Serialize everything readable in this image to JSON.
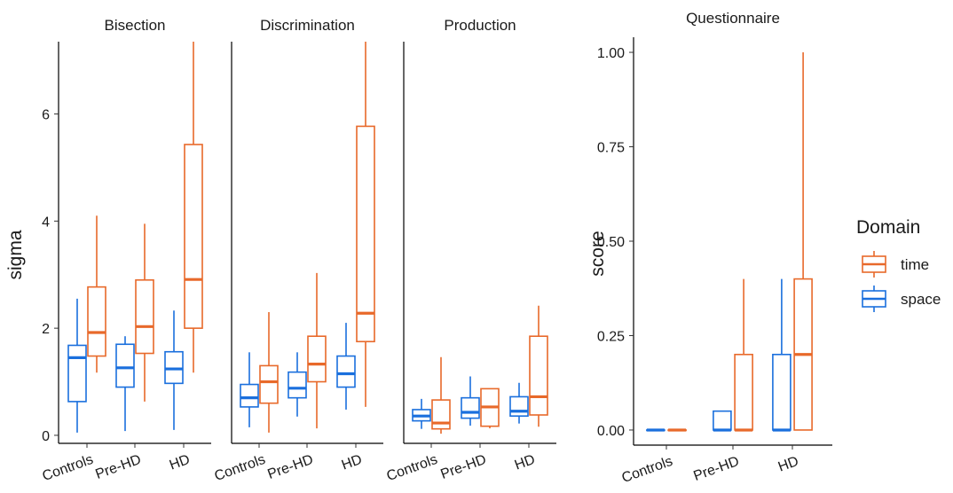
{
  "colors": {
    "time": "#E8692A",
    "space": "#1A6FDD"
  },
  "legend": {
    "title": "Domain",
    "items": [
      {
        "key": "time",
        "label": "time"
      },
      {
        "key": "space",
        "label": "space"
      }
    ]
  },
  "chart_data": [
    {
      "type": "boxplot",
      "title": "Bisection",
      "ylabel": "sigma",
      "ylim": [
        -0.15,
        7.35
      ],
      "yticks": [
        0,
        2,
        4,
        6
      ],
      "categories": [
        "Controls",
        "Pre-HD",
        "HD"
      ],
      "series": [
        {
          "name": "space",
          "boxes": [
            {
              "min": 0.05,
              "q1": 0.63,
              "median": 1.45,
              "q3": 1.68,
              "max": 2.55
            },
            {
              "min": 0.08,
              "q1": 0.9,
              "median": 1.26,
              "q3": 1.7,
              "max": 1.85
            },
            {
              "min": 0.1,
              "q1": 0.97,
              "median": 1.24,
              "q3": 1.56,
              "max": 2.33
            }
          ]
        },
        {
          "name": "time",
          "boxes": [
            {
              "min": 1.17,
              "q1": 1.48,
              "median": 1.92,
              "q3": 2.77,
              "max": 4.1
            },
            {
              "min": 0.63,
              "q1": 1.53,
              "median": 2.03,
              "q3": 2.9,
              "max": 3.95
            },
            {
              "min": 1.17,
              "q1": 2.0,
              "median": 2.91,
              "q3": 5.43,
              "max": 7.35
            }
          ]
        }
      ]
    },
    {
      "type": "boxplot",
      "title": "Discrimination",
      "ylim": [
        -0.15,
        7.35
      ],
      "categories": [
        "Controls",
        "Pre-HD",
        "HD"
      ],
      "series": [
        {
          "name": "space",
          "boxes": [
            {
              "min": 0.15,
              "q1": 0.53,
              "median": 0.7,
              "q3": 0.95,
              "max": 1.55
            },
            {
              "min": 0.35,
              "q1": 0.7,
              "median": 0.88,
              "q3": 1.18,
              "max": 1.55
            },
            {
              "min": 0.48,
              "q1": 0.9,
              "median": 1.15,
              "q3": 1.48,
              "max": 2.1
            }
          ]
        },
        {
          "name": "time",
          "boxes": [
            {
              "min": 0.05,
              "q1": 0.6,
              "median": 1.0,
              "q3": 1.3,
              "max": 2.3
            },
            {
              "min": 0.13,
              "q1": 1.0,
              "median": 1.33,
              "q3": 1.85,
              "max": 3.03
            },
            {
              "min": 0.53,
              "q1": 1.75,
              "median": 2.28,
              "q3": 5.77,
              "max": 7.35
            }
          ]
        }
      ]
    },
    {
      "type": "boxplot",
      "title": "Production",
      "ylim": [
        -0.15,
        7.35
      ],
      "categories": [
        "Controls",
        "Pre-HD",
        "HD"
      ],
      "series": [
        {
          "name": "space",
          "boxes": [
            {
              "min": 0.12,
              "q1": 0.27,
              "median": 0.36,
              "q3": 0.48,
              "max": 0.68
            },
            {
              "min": 0.18,
              "q1": 0.32,
              "median": 0.43,
              "q3": 0.7,
              "max": 1.1
            },
            {
              "min": 0.22,
              "q1": 0.36,
              "median": 0.45,
              "q3": 0.72,
              "max": 0.98
            }
          ]
        },
        {
          "name": "time",
          "boxes": [
            {
              "min": 0.03,
              "q1": 0.12,
              "median": 0.23,
              "q3": 0.66,
              "max": 1.46
            },
            {
              "min": 0.13,
              "q1": 0.17,
              "median": 0.53,
              "q3": 0.87,
              "max": 0.87
            },
            {
              "min": 0.16,
              "q1": 0.38,
              "median": 0.72,
              "q3": 1.85,
              "max": 2.42
            }
          ]
        }
      ]
    },
    {
      "type": "boxplot",
      "title": "Questionnaire",
      "ylabel": "score",
      "ylim": [
        -0.04,
        1.04
      ],
      "yticks": [
        0.0,
        0.25,
        0.5,
        0.75,
        1.0
      ],
      "yticklabels": [
        "0.00",
        "0.25",
        "0.50",
        "0.75",
        "1.00"
      ],
      "categories": [
        "Controls",
        "Pre-HD",
        "HD"
      ],
      "series": [
        {
          "name": "space",
          "boxes": [
            {
              "min": 0.0,
              "q1": 0.0,
              "median": 0.0,
              "q3": 0.0,
              "max": 0.0
            },
            {
              "min": 0.0,
              "q1": 0.0,
              "median": 0.0,
              "q3": 0.05,
              "max": 0.05
            },
            {
              "min": 0.0,
              "q1": 0.0,
              "median": 0.0,
              "q3": 0.2,
              "max": 0.4
            }
          ]
        },
        {
          "name": "time",
          "boxes": [
            {
              "min": 0.0,
              "q1": 0.0,
              "median": 0.0,
              "q3": 0.0,
              "max": 0.0
            },
            {
              "min": 0.0,
              "q1": 0.0,
              "median": 0.0,
              "q3": 0.2,
              "max": 0.4
            },
            {
              "min": 0.0,
              "q1": 0.0,
              "median": 0.2,
              "q3": 0.4,
              "max": 1.0
            }
          ]
        }
      ]
    }
  ]
}
